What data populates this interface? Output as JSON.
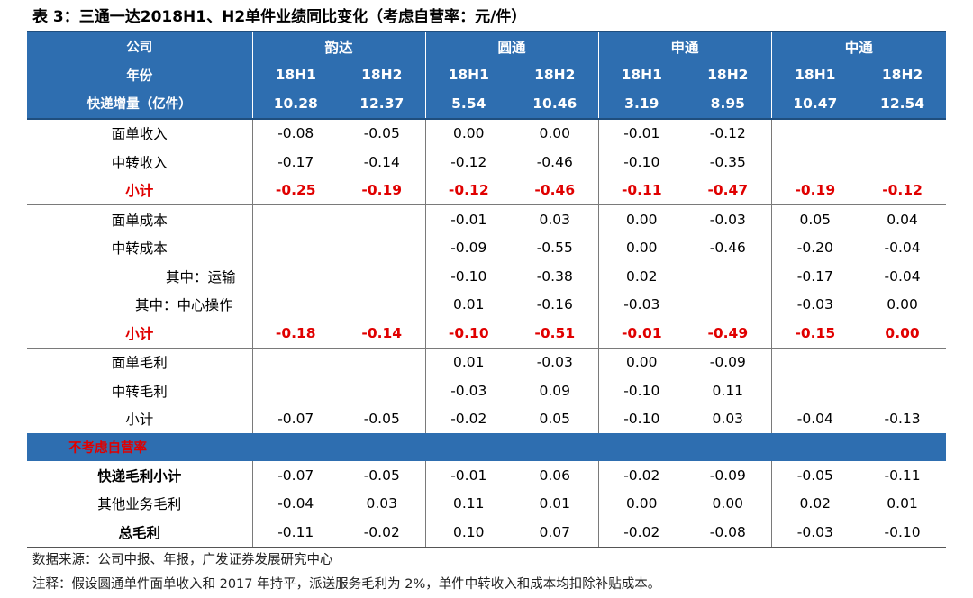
{
  "title": "表 3：三通一达2018H1、H2单件业绩同比变化（考虑自营率：元/件）",
  "header": {
    "company_label": "公司",
    "period_label": "年份",
    "volume_label": "快递增量（亿件）",
    "companies": [
      "韵达",
      "圆通",
      "申通",
      "中通"
    ],
    "periods": [
      "18H1",
      "18H2",
      "18H1",
      "18H2",
      "18H1",
      "18H2",
      "18H1",
      "18H2"
    ],
    "volumes": [
      "10.28",
      "12.37",
      "5.54",
      "10.46",
      "3.19",
      "8.95",
      "10.47",
      "12.54"
    ]
  },
  "revenue": {
    "rows": [
      {
        "label": "面单收入",
        "values": [
          "-0.08",
          "-0.05",
          "0.00",
          "0.00",
          "-0.01",
          "-0.12",
          "",
          ""
        ]
      },
      {
        "label": "中转收入",
        "values": [
          "-0.17",
          "-0.14",
          "-0.12",
          "-0.46",
          "-0.10",
          "-0.35",
          "",
          ""
        ]
      }
    ],
    "subtotal": {
      "label": "小计",
      "values": [
        "-0.25",
        "-0.19",
        "-0.12",
        "-0.46",
        "-0.11",
        "-0.47",
        "-0.19",
        "-0.12"
      ]
    }
  },
  "cost": {
    "rows": [
      {
        "label": "面单成本",
        "values": [
          "",
          "",
          "-0.01",
          "0.03",
          "0.00",
          "-0.03",
          "0.05",
          "0.04"
        ]
      },
      {
        "label": "中转成本",
        "values": [
          "",
          "",
          "-0.09",
          "-0.55",
          "0.00",
          "-0.46",
          "-0.20",
          "-0.04"
        ]
      },
      {
        "label": "其中：运输",
        "values": [
          "",
          "",
          "-0.10",
          "-0.38",
          "0.02",
          "",
          "-0.17",
          "-0.04"
        ]
      },
      {
        "label": "其中：中心操作",
        "values": [
          "",
          "",
          "0.01",
          "-0.16",
          "-0.03",
          "",
          "-0.03",
          "0.00"
        ]
      }
    ],
    "subtotal": {
      "label": "小计",
      "values": [
        "-0.18",
        "-0.14",
        "-0.10",
        "-0.51",
        "-0.01",
        "-0.49",
        "-0.15",
        "0.00"
      ]
    }
  },
  "margin": {
    "rows": [
      {
        "label": "面单毛利",
        "values": [
          "",
          "",
          "0.01",
          "-0.03",
          "0.00",
          "-0.09",
          "",
          ""
        ]
      },
      {
        "label": "中转毛利",
        "values": [
          "",
          "",
          "-0.03",
          "0.09",
          "-0.10",
          "0.11",
          "",
          ""
        ]
      },
      {
        "label": "小计",
        "values": [
          "-0.07",
          "-0.05",
          "-0.02",
          "0.05",
          "-0.10",
          "0.03",
          "-0.04",
          "-0.13"
        ]
      }
    ]
  },
  "band_label": "不考虑自营率",
  "totals": {
    "rows": [
      {
        "label": "快递毛利小计",
        "values": [
          "-0.07",
          "-0.05",
          "-0.01",
          "0.06",
          "-0.02",
          "-0.09",
          "-0.05",
          "-0.11"
        ]
      },
      {
        "label": "其他业务毛利",
        "values": [
          "-0.04",
          "0.03",
          "0.11",
          "0.01",
          "0.00",
          "0.00",
          "0.02",
          "0.01"
        ]
      },
      {
        "label": "总毛利",
        "values": [
          "-0.11",
          "-0.02",
          "0.10",
          "0.07",
          "-0.02",
          "-0.08",
          "-0.03",
          "-0.10"
        ]
      }
    ]
  },
  "source_note": "数据来源：公司中报、年报，广发证券发展研究中心",
  "footnote": "注释：假设圆通单件面单收入和 2017 年持平，派送服务毛利为 2%，单件中转收入和成本均扣除补贴成本。",
  "colors": {
    "header_bg": "#2e6eb0",
    "highlight": "#e00000"
  }
}
